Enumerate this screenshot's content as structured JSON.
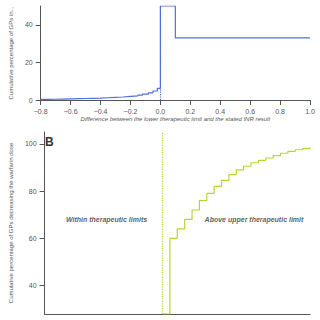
{
  "chart_data": [
    {
      "type": "step",
      "xlabel": "Difference between the lower therapeutic limit and the stated INR result",
      "ylabel": "Cumulative percentage of GPs in...",
      "x": [
        -0.8,
        -0.75,
        -0.7,
        -0.65,
        -0.6,
        -0.55,
        -0.5,
        -0.45,
        -0.4,
        -0.35,
        -0.3,
        -0.25,
        -0.2,
        -0.15,
        -0.12,
        -0.08,
        -0.05,
        -0.02,
        0.0,
        0.1,
        1.0
      ],
      "values": [
        0.3,
        0.4,
        0.5,
        0.6,
        0.7,
        0.8,
        0.9,
        1.0,
        1.2,
        1.4,
        1.6,
        1.9,
        2.2,
        2.6,
        3.1,
        3.8,
        4.8,
        6.2,
        50.0,
        33.0,
        33.0
      ],
      "xlim": [
        -0.8,
        1.0
      ],
      "ylim": [
        0,
        50
      ],
      "xticks": [
        {
          "value": -0.8,
          "label": "−0.8"
        },
        {
          "value": -0.6,
          "label": "−0.6"
        },
        {
          "value": -0.4,
          "label": "−0.4"
        },
        {
          "value": -0.2,
          "label": "−0.2"
        },
        {
          "value": 0.0,
          "label": "0.0"
        },
        0.2,
        0.4,
        0.6,
        0.8,
        {
          "value": 1.0,
          "label": "1.0"
        }
      ],
      "yticks": [
        0,
        20,
        40
      ],
      "vline_x": 0.0,
      "grid": false
    },
    {
      "type": "step",
      "title": "B",
      "ylabel": "Cumulative percentage of GPs decreasing the warfarin dose",
      "x": [
        0.0,
        0.05,
        0.1,
        0.15,
        0.2,
        0.25,
        0.3,
        0.35,
        0.4,
        0.45,
        0.5,
        0.55,
        0.6,
        0.65,
        0.7,
        0.75,
        0.8,
        0.85,
        0.9,
        0.95,
        1.0
      ],
      "values": [
        28.0,
        60.0,
        64.0,
        68.0,
        72.0,
        76.0,
        79.0,
        82.0,
        84.5,
        87.0,
        89.0,
        90.5,
        92.0,
        93.0,
        94.0,
        95.0,
        96.0,
        96.8,
        97.5,
        98.0,
        98.5
      ],
      "xlim": [
        -0.8,
        1.0
      ],
      "ylim": [
        28,
        105
      ],
      "yticks": [
        40,
        60,
        80,
        100
      ],
      "vline_x": 0.0,
      "annotations": [
        {
          "text": "Within therapeutic limits",
          "x": -0.38,
          "y": 68
        },
        {
          "text": "Above upper therapeutic limit",
          "x": 0.62,
          "y": 68
        }
      ],
      "tick_labels": "y",
      "grid": false
    }
  ]
}
